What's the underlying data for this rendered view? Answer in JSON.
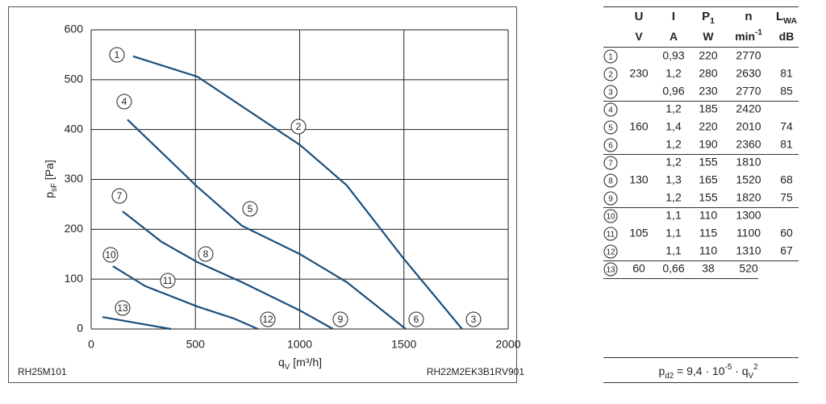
{
  "chart_data": {
    "type": "line",
    "x_label": [
      {
        "text": "q"
      },
      {
        "text": "V",
        "shift": "sub"
      },
      {
        "text": " [m³/h]"
      }
    ],
    "y_label": [
      {
        "text": "p"
      },
      {
        "text": "sF",
        "shift": "sub"
      },
      {
        "text": " [Pa]"
      }
    ],
    "xlim": [
      0,
      2000
    ],
    "ylim": [
      0,
      600
    ],
    "xticks": [
      0,
      500,
      1000,
      1500,
      2000
    ],
    "yticks": [
      0,
      100,
      200,
      300,
      400,
      500,
      600
    ],
    "grid": true,
    "series": [
      {
        "labels": [
          "1",
          "2",
          "3"
        ],
        "color": "#1b4f7c",
        "x": [
          201,
          510,
          1002,
          1226,
          1497,
          1779
        ],
        "values": [
          547,
          506,
          369,
          288,
          142,
          0
        ]
      },
      {
        "labels": [
          "4",
          "5",
          "6"
        ],
        "color": "#1b4f7c",
        "x": [
          174,
          510,
          723,
          1002,
          1226,
          1509
        ],
        "values": [
          420,
          285,
          207,
          150,
          94,
          0
        ]
      },
      {
        "labels": [
          "7",
          "8",
          "9"
        ],
        "color": "#1b4f7c",
        "x": [
          151,
          337,
          510,
          723,
          1002,
          1160
        ],
        "values": [
          236,
          175,
          134,
          94,
          37,
          0
        ]
      },
      {
        "labels": [
          "10",
          "11",
          "12"
        ],
        "color": "#1b4f7c",
        "x": [
          104,
          259,
          510,
          685,
          800
        ],
        "values": [
          126,
          86,
          45,
          21,
          0
        ]
      },
      {
        "labels": [
          "13"
        ],
        "color": "#1b4f7c",
        "x": [
          54,
          383
        ],
        "values": [
          24,
          0
        ]
      }
    ],
    "footer_left": "RH25M101",
    "footer_right": "RH22M2EK3B1RV901"
  },
  "table": {
    "header": [
      [
        {
          "text": "U"
        }
      ],
      [
        {
          "text": "I"
        }
      ],
      [
        {
          "text": "P"
        },
        {
          "text": "1",
          "shift": "sub"
        }
      ],
      [
        {
          "text": "n"
        }
      ],
      [
        {
          "text": "L"
        },
        {
          "text": "WA",
          "shift": "sub"
        }
      ]
    ],
    "units": [
      [
        {
          "text": "V"
        }
      ],
      [
        {
          "text": "A"
        }
      ],
      [
        {
          "text": "W"
        }
      ],
      [
        {
          "text": "min"
        },
        {
          "text": "-1",
          "shift": "super"
        }
      ],
      [
        {
          "text": "dB"
        }
      ]
    ],
    "rows": [
      [
        "1",
        null,
        "0,93",
        "220",
        "2770",
        null
      ],
      [
        "2",
        "230",
        "1,2",
        "280",
        "2630",
        "81"
      ],
      [
        "3",
        null,
        "0,96",
        "230",
        "2770",
        "85"
      ],
      [
        "4",
        null,
        "1,2",
        "185",
        "2420",
        null
      ],
      [
        "5",
        "160",
        "1,4",
        "220",
        "2010",
        "74"
      ],
      [
        "6",
        null,
        "1,2",
        "190",
        "2360",
        "81"
      ],
      [
        "7",
        null,
        "1,2",
        "155",
        "1810",
        null
      ],
      [
        "8",
        "130",
        "1,3",
        "165",
        "1520",
        "68"
      ],
      [
        "9",
        null,
        "1,2",
        "155",
        "1820",
        "75"
      ],
      [
        "10",
        null,
        "1,1",
        "110",
        "1300",
        null
      ],
      [
        "11",
        "105",
        "1,1",
        "115",
        "1100",
        "60"
      ],
      [
        "12",
        null,
        "1,1",
        "110",
        "1310",
        "67"
      ],
      [
        "13",
        "60",
        "0,66",
        "38",
        "520",
        null
      ]
    ],
    "formula": [
      {
        "text": "p"
      },
      {
        "text": "d2",
        "shift": "sub"
      },
      {
        "text": " = 9,4 · 10"
      },
      {
        "text": "-5",
        "shift": "super"
      },
      {
        "text": " · q"
      },
      {
        "text": "V",
        "shift": "sub"
      },
      {
        "text": "2",
        "shift": "super"
      }
    ]
  }
}
